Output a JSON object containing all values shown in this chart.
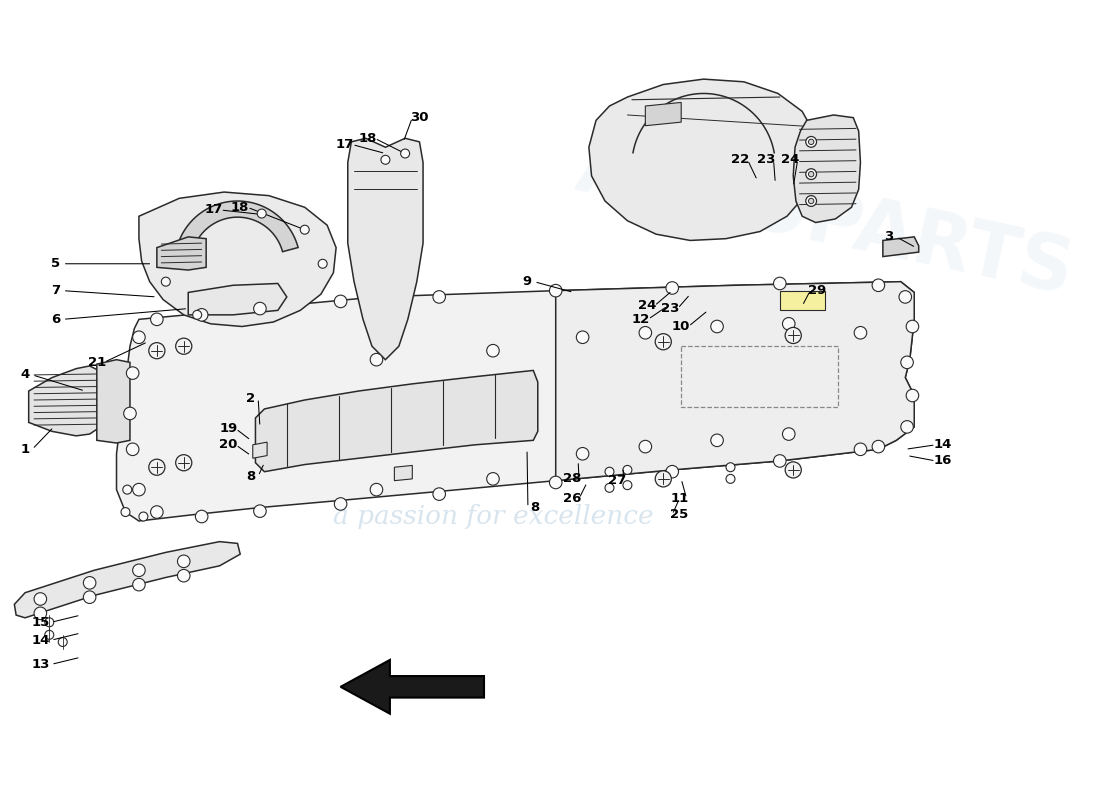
{
  "background_color": "#ffffff",
  "watermark_text": "a passion for excellence",
  "watermark_color": "#b8cfe0",
  "label_fontsize": 9.5,
  "label_fontweight": "bold",
  "line_color": "#2a2a2a",
  "line_width": 1.1,
  "fill_light": "#f2f2f2",
  "fill_mid": "#e4e4e4",
  "fill_dark": "#d4d4d4",
  "fill_white": "#fafafa"
}
